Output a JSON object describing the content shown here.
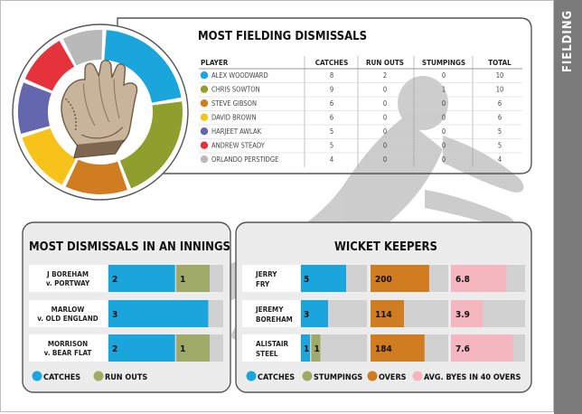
{
  "sidebar": {
    "label": "FIELDING"
  },
  "colors": {
    "catches": "#1aa6dd",
    "run_outs": "#9fa968",
    "stumpings": "#9fa968",
    "overs": "#d07c20",
    "byes": "#f4b6bf",
    "track": "#d1d1d1"
  },
  "chart_data": [
    {
      "type": "table",
      "title": "MOST FIELDING DISMISSALS",
      "columns": [
        "PLAYER",
        "CATCHES",
        "RUN OUTS",
        "STUMPINGS",
        "TOTAL"
      ],
      "rows": [
        {
          "player": "ALEX WOODWARD",
          "color": "#1aa6dd",
          "catches": "8",
          "run_outs": "2",
          "stumpings": "0",
          "total": "10"
        },
        {
          "player": "CHRIS SOWTON",
          "color": "#8f9f2e",
          "catches": "9",
          "run_outs": "0",
          "stumpings": "1",
          "total": "10"
        },
        {
          "player": "STEVE GIBSON",
          "color": "#d07c20",
          "catches": "6",
          "run_outs": "0",
          "stumpings": "0",
          "total": "6"
        },
        {
          "player": "DAVID BROWN",
          "color": "#f7c21a",
          "catches": "6",
          "run_outs": "0",
          "stumpings": "0",
          "total": "6"
        },
        {
          "player": "HARJEET AWLAK",
          "color": "#6466ae",
          "catches": "5",
          "run_outs": "0",
          "stumpings": "0",
          "total": "5"
        },
        {
          "player": "ANDREW STEADY",
          "color": "#e6333b",
          "catches": "5",
          "run_outs": "0",
          "stumpings": "0",
          "total": "5"
        },
        {
          "player": "ORLANDO PERSTIDGE",
          "color": "#b9b9b9",
          "catches": "4",
          "run_outs": "0",
          "stumpings": "0",
          "total": "4"
        }
      ]
    },
    {
      "type": "pie",
      "categories": [
        "ALEX WOODWARD",
        "CHRIS SOWTON",
        "STEVE GIBSON",
        "DAVID BROWN",
        "HARJEET AWLAK",
        "ANDREW STEADY",
        "ORLANDO PERSTIDGE"
      ],
      "values": [
        10,
        10,
        6,
        6,
        5,
        5,
        4
      ],
      "colors": [
        "#1aa6dd",
        "#8f9f2e",
        "#d07c20",
        "#f7c21a",
        "#6466ae",
        "#e6333b",
        "#b9b9b9"
      ]
    },
    {
      "type": "bar",
      "title": "MOST DISMISSALS IN AN INNINGS",
      "stacked": true,
      "categories": [
        [
          "J BOREHAM",
          "v. PORTWAY"
        ],
        [
          "MARLOW",
          "v. OLD ENGLAND"
        ],
        [
          "MORRISON",
          "v. BEAR FLAT"
        ]
      ],
      "series": [
        {
          "name": "CATCHES",
          "values": [
            2,
            3,
            2
          ]
        },
        {
          "name": "RUN OUTS",
          "values": [
            1,
            0,
            1
          ]
        }
      ],
      "xlim": [
        0,
        3.45
      ]
    },
    {
      "type": "bar",
      "title": "WICKET KEEPERS",
      "categories": [
        [
          "JERRY",
          "FRY"
        ],
        [
          "JEREMY",
          "BOREHAM"
        ],
        [
          "ALISTAIR",
          "STEEL"
        ]
      ],
      "dismissals": {
        "series": [
          {
            "name": "CATCHES",
            "values": [
              5,
              3,
              1
            ]
          },
          {
            "name": "STUMPINGS",
            "values": [
              0,
              0,
              1
            ]
          }
        ],
        "xlim": [
          0,
          7.3
        ]
      },
      "overs": {
        "name": "OVERS",
        "values": [
          200,
          114,
          184
        ],
        "xlim": [
          0,
          265
        ]
      },
      "byes": {
        "name": "AVG. BYES IN 40 OVERS",
        "values": [
          6.8,
          3.9,
          7.6
        ],
        "xlim": [
          0,
          9.1
        ]
      }
    }
  ],
  "legends": {
    "innings": [
      "CATCHES",
      "RUN OUTS"
    ],
    "keepers": [
      "CATCHES",
      "STUMPINGS",
      "OVERS",
      "AVG. BYES IN 40 OVERS"
    ]
  }
}
